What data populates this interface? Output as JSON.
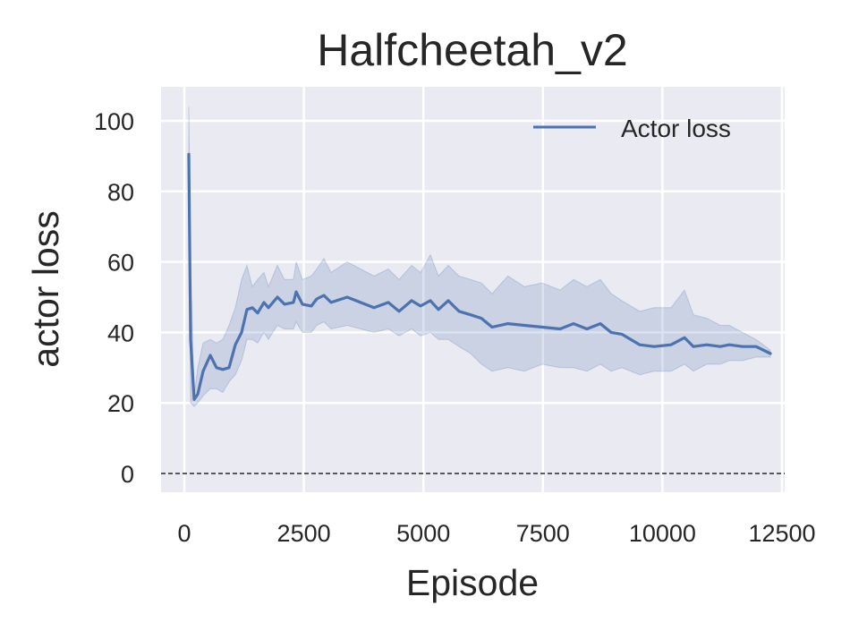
{
  "chart_data": {
    "type": "line",
    "title": "Halfcheetah_v2",
    "xlabel": "Episode",
    "ylabel": "actor loss",
    "xlim": [
      -500,
      12650
    ],
    "ylim": [
      -5,
      110
    ],
    "xticks": [
      0,
      2500,
      5000,
      7500,
      10000,
      12500
    ],
    "xtick_labels": [
      "0",
      "2500",
      "5000",
      "7500",
      "10000",
      "12500"
    ],
    "yticks": [
      0,
      20,
      40,
      60,
      80,
      100
    ],
    "ytick_labels": [
      "0",
      "20",
      "40",
      "60",
      "80",
      "100"
    ],
    "grid": true,
    "legend_position": "upper right",
    "reference_line": {
      "y": 0,
      "style": "dashed",
      "color": "#000000"
    },
    "series": [
      {
        "name": "Actor loss",
        "color": "#4c72b0",
        "x": [
          94,
          131,
          206,
          281,
          393,
          543,
          674,
          805,
          936,
          1067,
          1198,
          1310,
          1422,
          1535,
          1666,
          1759,
          1946,
          2096,
          2283,
          2339,
          2470,
          2657,
          2770,
          2919,
          3069,
          3406,
          3687,
          3967,
          4267,
          4491,
          4753,
          4940,
          5146,
          5314,
          5520,
          5745,
          5988,
          6213,
          6437,
          6766,
          7111,
          7485,
          7859,
          8140,
          8420,
          8701,
          8925,
          9150,
          9524,
          9824,
          10180,
          10461,
          10648,
          10928,
          11209,
          11396,
          11677,
          11957,
          12257
        ],
        "values": [
          90.5,
          38,
          21,
          22.5,
          29,
          33.5,
          30,
          29.5,
          30,
          36.5,
          40,
          46.5,
          47,
          45.5,
          48.5,
          47,
          50,
          48,
          48.5,
          51.5,
          48,
          47.5,
          49.5,
          50.5,
          48.5,
          50,
          48.5,
          47,
          48.5,
          46,
          49,
          47.5,
          49,
          46.5,
          49,
          46,
          45,
          44,
          41.5,
          42.5,
          42,
          41.5,
          41,
          42.5,
          41,
          42.5,
          40,
          39.5,
          36.5,
          36,
          36.5,
          38.5,
          36,
          36.5,
          36,
          36.5,
          36,
          36,
          34
        ],
        "band_upper": [
          104,
          60,
          22,
          30,
          37,
          38,
          37,
          38,
          42,
          47,
          55,
          59,
          53,
          55,
          57,
          53,
          59,
          55,
          55,
          60,
          55,
          56,
          58,
          61,
          57,
          60,
          58,
          56,
          58,
          55,
          59,
          57,
          62,
          56,
          59,
          56,
          55,
          54,
          51,
          56,
          53,
          54,
          52,
          55,
          53,
          55,
          51,
          49,
          46,
          47,
          47,
          52,
          45,
          44,
          42,
          42,
          40,
          38,
          35
        ],
        "band_lower": [
          76,
          20,
          19,
          20,
          22,
          24,
          24,
          23,
          26,
          28,
          32,
          38,
          38,
          37,
          40,
          38,
          42,
          41,
          41,
          43,
          40,
          40,
          42,
          43,
          41,
          42,
          41,
          40,
          41,
          39,
          41,
          39,
          40,
          38,
          38,
          36,
          34,
          31,
          29,
          30,
          29,
          31,
          30,
          30,
          29,
          31,
          29,
          30,
          28,
          29,
          29,
          31,
          29,
          31,
          31,
          32,
          32,
          33,
          33
        ]
      }
    ]
  }
}
